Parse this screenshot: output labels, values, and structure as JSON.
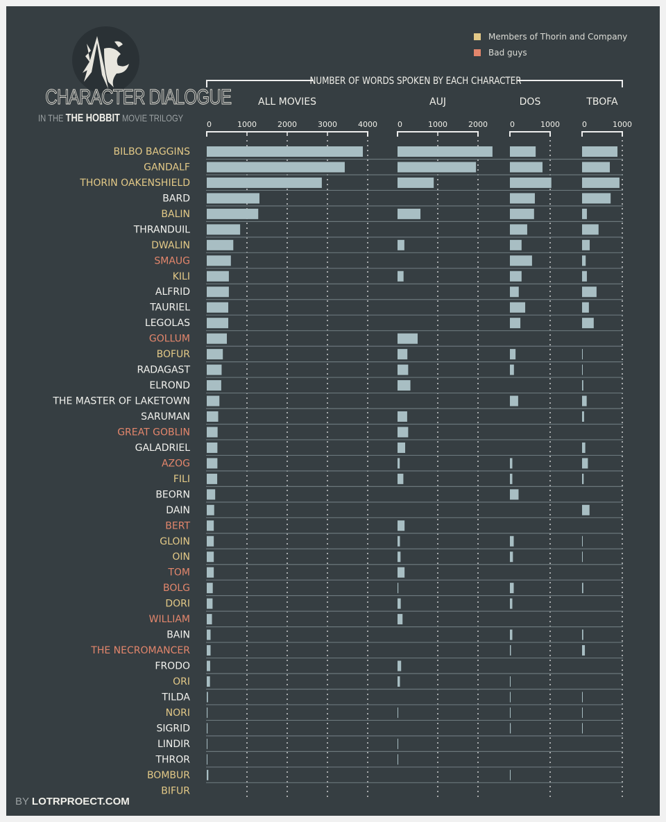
{
  "title": "CHARACTER DIALOGUE",
  "subtitle_pre": "IN THE",
  "subtitle_bold": "THE HOBBIT",
  "subtitle_post": "MOVIE TRILOGY",
  "credit_by": "BY",
  "credit_site": "LOTRPROECT.COM",
  "legend": [
    {
      "label": "Members of Thorin and Company",
      "color": "#e3c987"
    },
    {
      "label": "Bad guys",
      "color": "#e3866c"
    }
  ],
  "colors": {
    "background": "#363e42",
    "bar": "#a8bec3",
    "normal_name": "#f2f2ee",
    "company": "#e3c987",
    "bad": "#e3866c"
  },
  "chart_data": {
    "type": "bar",
    "orientation": "horizontal",
    "title": "NUMBER OF WORDS SPOKEN BY EACH CHARACTER",
    "panels": [
      {
        "key": "all",
        "label": "ALL MOVIES",
        "xlim": [
          0,
          4000
        ],
        "ticks": [
          "0",
          "1000",
          "2000",
          "3000",
          "4000"
        ]
      },
      {
        "key": "auj",
        "label": "AUJ",
        "xlim": [
          0,
          2000
        ],
        "ticks": [
          "0",
          "1000",
          "2000"
        ]
      },
      {
        "key": "dos",
        "label": "DOS",
        "xlim": [
          0,
          1000
        ],
        "ticks": [
          "0",
          "1000"
        ]
      },
      {
        "key": "tbofa",
        "label": "TBOFA",
        "xlim": [
          0,
          1000
        ],
        "ticks": [
          "0",
          "1000"
        ]
      }
    ],
    "grid": true,
    "legend_position": "top-right",
    "characters": [
      {
        "name": "BILBO BAGGINS",
        "group": "company",
        "all": 3880,
        "auj": 2360,
        "dos": 640,
        "tbofa": 880
      },
      {
        "name": "GANDALF",
        "group": "company",
        "all": 3430,
        "auj": 1950,
        "dos": 810,
        "tbofa": 690
      },
      {
        "name": "THORIN OAKENSHIELD",
        "group": "company",
        "all": 2860,
        "auj": 900,
        "dos": 1030,
        "tbofa": 930
      },
      {
        "name": "BARD",
        "group": "none",
        "all": 1310,
        "auj": 0,
        "dos": 620,
        "tbofa": 710
      },
      {
        "name": "BALIN",
        "group": "company",
        "all": 1280,
        "auj": 570,
        "dos": 600,
        "tbofa": 120
      },
      {
        "name": "THRANDUIL",
        "group": "none",
        "all": 830,
        "auj": 0,
        "dos": 430,
        "tbofa": 410
      },
      {
        "name": "DWALIN",
        "group": "company",
        "all": 660,
        "auj": 170,
        "dos": 290,
        "tbofa": 190
      },
      {
        "name": "SMAUG",
        "group": "bad",
        "all": 600,
        "auj": 0,
        "dos": 550,
        "tbofa": 90
      },
      {
        "name": "KILI",
        "group": "company",
        "all": 550,
        "auj": 150,
        "dos": 290,
        "tbofa": 120
      },
      {
        "name": "ALFRID",
        "group": "none",
        "all": 550,
        "auj": 0,
        "dos": 220,
        "tbofa": 360
      },
      {
        "name": "TAURIEL",
        "group": "none",
        "all": 535,
        "auj": 0,
        "dos": 380,
        "tbofa": 170
      },
      {
        "name": "LEGOLAS",
        "group": "none",
        "all": 535,
        "auj": 0,
        "dos": 260,
        "tbofa": 290
      },
      {
        "name": "GOLLUM",
        "group": "bad",
        "all": 500,
        "auj": 500,
        "dos": 0,
        "tbofa": 0
      },
      {
        "name": "BOFUR",
        "group": "company",
        "all": 400,
        "auj": 245,
        "dos": 140,
        "tbofa": 15
      },
      {
        "name": "RADAGAST",
        "group": "none",
        "all": 370,
        "auj": 265,
        "dos": 100,
        "tbofa": 5
      },
      {
        "name": "ELROND",
        "group": "none",
        "all": 360,
        "auj": 320,
        "dos": 0,
        "tbofa": 30
      },
      {
        "name": "THE MASTER OF LAKETOWN",
        "group": "none",
        "all": 315,
        "auj": 0,
        "dos": 205,
        "tbofa": 115
      },
      {
        "name": "SARUMAN",
        "group": "none",
        "all": 285,
        "auj": 240,
        "dos": 0,
        "tbofa": 50
      },
      {
        "name": "GREAT GOBLIN",
        "group": "bad",
        "all": 270,
        "auj": 265,
        "dos": 0,
        "tbofa": 0
      },
      {
        "name": "GALADRIEL",
        "group": "none",
        "all": 265,
        "auj": 190,
        "dos": 0,
        "tbofa": 80
      },
      {
        "name": "AZOG",
        "group": "bad",
        "all": 265,
        "auj": 55,
        "dos": 60,
        "tbofa": 145
      },
      {
        "name": "FILI",
        "group": "company",
        "all": 260,
        "auj": 145,
        "dos": 60,
        "tbofa": 40
      },
      {
        "name": "BEORN",
        "group": "none",
        "all": 210,
        "auj": 0,
        "dos": 215,
        "tbofa": 0
      },
      {
        "name": "DAIN",
        "group": "none",
        "all": 185,
        "auj": 0,
        "dos": 0,
        "tbofa": 185
      },
      {
        "name": "BERT",
        "group": "bad",
        "all": 175,
        "auj": 175,
        "dos": 0,
        "tbofa": 0
      },
      {
        "name": "GLOIN",
        "group": "company",
        "all": 175,
        "auj": 60,
        "dos": 95,
        "tbofa": 15
      },
      {
        "name": "OIN",
        "group": "company",
        "all": 175,
        "auj": 75,
        "dos": 75,
        "tbofa": 15
      },
      {
        "name": "TOM",
        "group": "bad",
        "all": 175,
        "auj": 175,
        "dos": 0,
        "tbofa": 0
      },
      {
        "name": "BOLG",
        "group": "bad",
        "all": 150,
        "auj": 20,
        "dos": 95,
        "tbofa": 30
      },
      {
        "name": "DORI",
        "group": "company",
        "all": 145,
        "auj": 80,
        "dos": 60,
        "tbofa": 0
      },
      {
        "name": "WILLIAM",
        "group": "bad",
        "all": 130,
        "auj": 125,
        "dos": 0,
        "tbofa": 0
      },
      {
        "name": "BAIN",
        "group": "none",
        "all": 95,
        "auj": 0,
        "dos": 60,
        "tbofa": 30
      },
      {
        "name": "THE NECROMANCER",
        "group": "bad",
        "all": 95,
        "auj": 0,
        "dos": 25,
        "tbofa": 70
      },
      {
        "name": "FRODO",
        "group": "none",
        "all": 85,
        "auj": 90,
        "dos": 0,
        "tbofa": 0
      },
      {
        "name": "ORI",
        "group": "company",
        "all": 80,
        "auj": 60,
        "dos": 15,
        "tbofa": 0
      },
      {
        "name": "TILDA",
        "group": "none",
        "all": 30,
        "auj": 0,
        "dos": 15,
        "tbofa": 15
      },
      {
        "name": "NORI",
        "group": "company",
        "all": 20,
        "auj": 10,
        "dos": 15,
        "tbofa": 10
      },
      {
        "name": "SIGRID",
        "group": "none",
        "all": 20,
        "auj": 0,
        "dos": 20,
        "tbofa": 10
      },
      {
        "name": "LINDIR",
        "group": "none",
        "all": 15,
        "auj": 15,
        "dos": 0,
        "tbofa": 0
      },
      {
        "name": "THROR",
        "group": "none",
        "all": 15,
        "auj": 15,
        "dos": 0,
        "tbofa": 0
      },
      {
        "name": "BOMBUR",
        "group": "company",
        "all": 40,
        "auj": 0,
        "dos": 15,
        "tbofa": 0
      },
      {
        "name": "BIFUR",
        "group": "company",
        "all": 0,
        "auj": 0,
        "dos": 0,
        "tbofa": 0
      }
    ]
  }
}
